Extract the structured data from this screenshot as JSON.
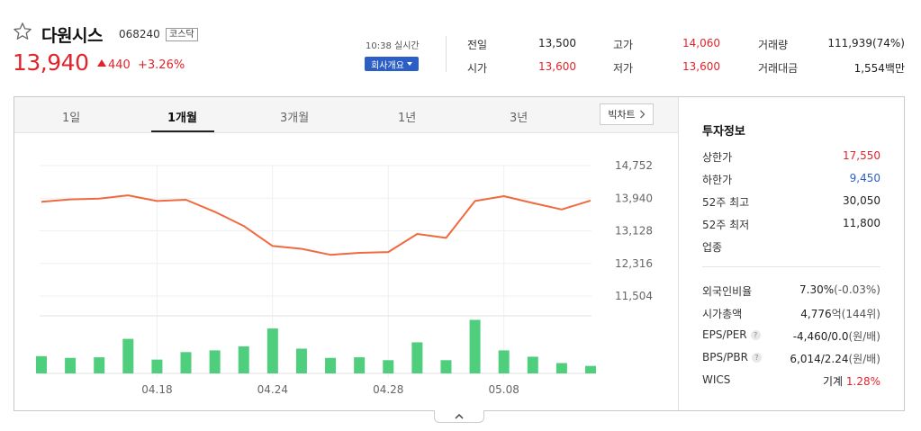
{
  "stock": {
    "name": "다원시스",
    "code": "068240",
    "market": "코스닥",
    "price": "13,940",
    "change": "440",
    "change_pct": "+3.26%",
    "time": "10:38 실시간",
    "company_btn": "회사개요"
  },
  "summary": {
    "prev_close_label": "전일",
    "prev_close": "13,500",
    "open_label": "시가",
    "open": "13,600",
    "high_label": "고가",
    "high": "14,060",
    "low_label": "저가",
    "low": "13,600",
    "volume_label": "거래량",
    "volume": "111,939(74%)",
    "amount_label": "거래대금",
    "amount": "1,554백만"
  },
  "tabs": [
    "1일",
    "1개월",
    "3개월",
    "1년",
    "3년"
  ],
  "active_tab": "1개월",
  "bigchart_label": "빅차트",
  "colors": {
    "up": "#e0242b",
    "down": "#2b5fc5",
    "line": "#f06a3f",
    "volume": "#4fcf7d"
  },
  "chart_data": {
    "type": "line",
    "title": "",
    "x_tick_labels": [
      "04.18",
      "04.24",
      "04.28",
      "05.08"
    ],
    "y_tick_labels": [
      "14,752",
      "13,940",
      "13,128",
      "12,316",
      "11,504"
    ],
    "ylim": [
      11504,
      14752
    ],
    "grid": true,
    "series": [
      {
        "values": [
          13850,
          13910,
          13930,
          14010,
          13870,
          13900,
          13600,
          13250,
          12750,
          12680,
          12530,
          12580,
          12600,
          13050,
          12950,
          13870,
          13990,
          13820,
          13660,
          13880
        ]
      }
    ],
    "volume": [
      3,
      2.7,
      2.8,
      6,
      2.4,
      3.7,
      4,
      4.7,
      7.8,
      4.3,
      2.7,
      2.8,
      2.3,
      5.4,
      2.3,
      9.3,
      4,
      2.9,
      1.8,
      1.3
    ]
  },
  "invest": {
    "title": "투자정보",
    "rows": [
      {
        "label": "상한가",
        "value": "17,550",
        "color": "red"
      },
      {
        "label": "하한가",
        "value": "9,450",
        "color": "blue"
      },
      {
        "label": "52주 최고",
        "value": "30,050"
      },
      {
        "label": "52주 최저",
        "value": "11,800"
      },
      {
        "label": "업종",
        "value": ""
      }
    ],
    "rows2": [
      {
        "label": "외국인비율",
        "value": "7.30%",
        "unit": "(-0.03%)"
      },
      {
        "label": "시가총액",
        "value": "4,776",
        "unit": "억(144위)"
      },
      {
        "label": "EPS/PER",
        "value": "-4,460/0.0",
        "unit": "(원/배)",
        "help": "?"
      },
      {
        "label": "BPS/PBR",
        "value": "6,014/2.24",
        "unit": "(원/배)",
        "help": "?"
      },
      {
        "label": "WICS",
        "value": "기계",
        "pct": "1.28%"
      }
    ]
  }
}
